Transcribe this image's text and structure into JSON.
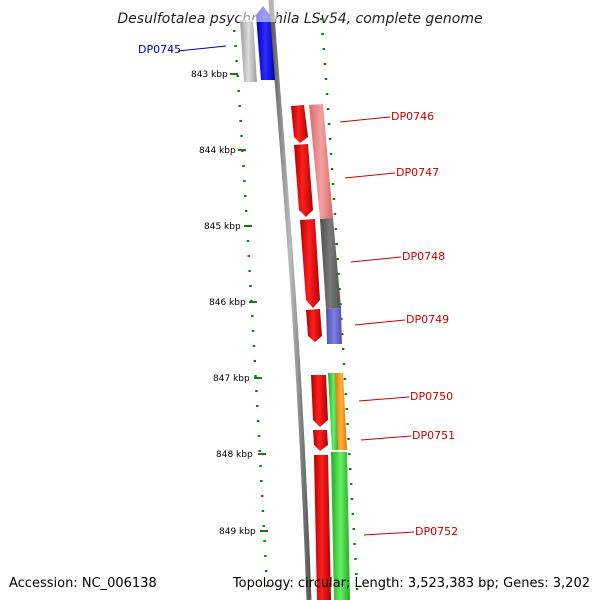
{
  "title": "Desulfotalea psychrophila LSv54, complete genome",
  "accession": "Accession: NC_006138",
  "topology": "Topology: circular; Length: 3,523,383 bp; Genes: 3,202",
  "colors": {
    "backbone": "#777777",
    "tick": "#1a7a1a",
    "label_red": "#cc0000",
    "label_blue": "#0000cc"
  },
  "ticks": [
    {
      "label": "843 kbp"
    },
    {
      "label": "844 kbp"
    },
    {
      "label": "845 kbp"
    },
    {
      "label": "846 kbp"
    },
    {
      "label": "847 kbp"
    },
    {
      "label": "848 kbp"
    },
    {
      "label": "849 kbp"
    }
  ],
  "genes": [
    {
      "label": "DP0745",
      "color": "blue"
    },
    {
      "label": "DP0746",
      "color": "red"
    },
    {
      "label": "DP0747",
      "color": "red"
    },
    {
      "label": "DP0748",
      "color": "red"
    },
    {
      "label": "DP0749",
      "color": "red"
    },
    {
      "label": "DP0750",
      "color": "red"
    },
    {
      "label": "DP0751",
      "color": "red"
    },
    {
      "label": "DP0752",
      "color": "red"
    }
  ]
}
